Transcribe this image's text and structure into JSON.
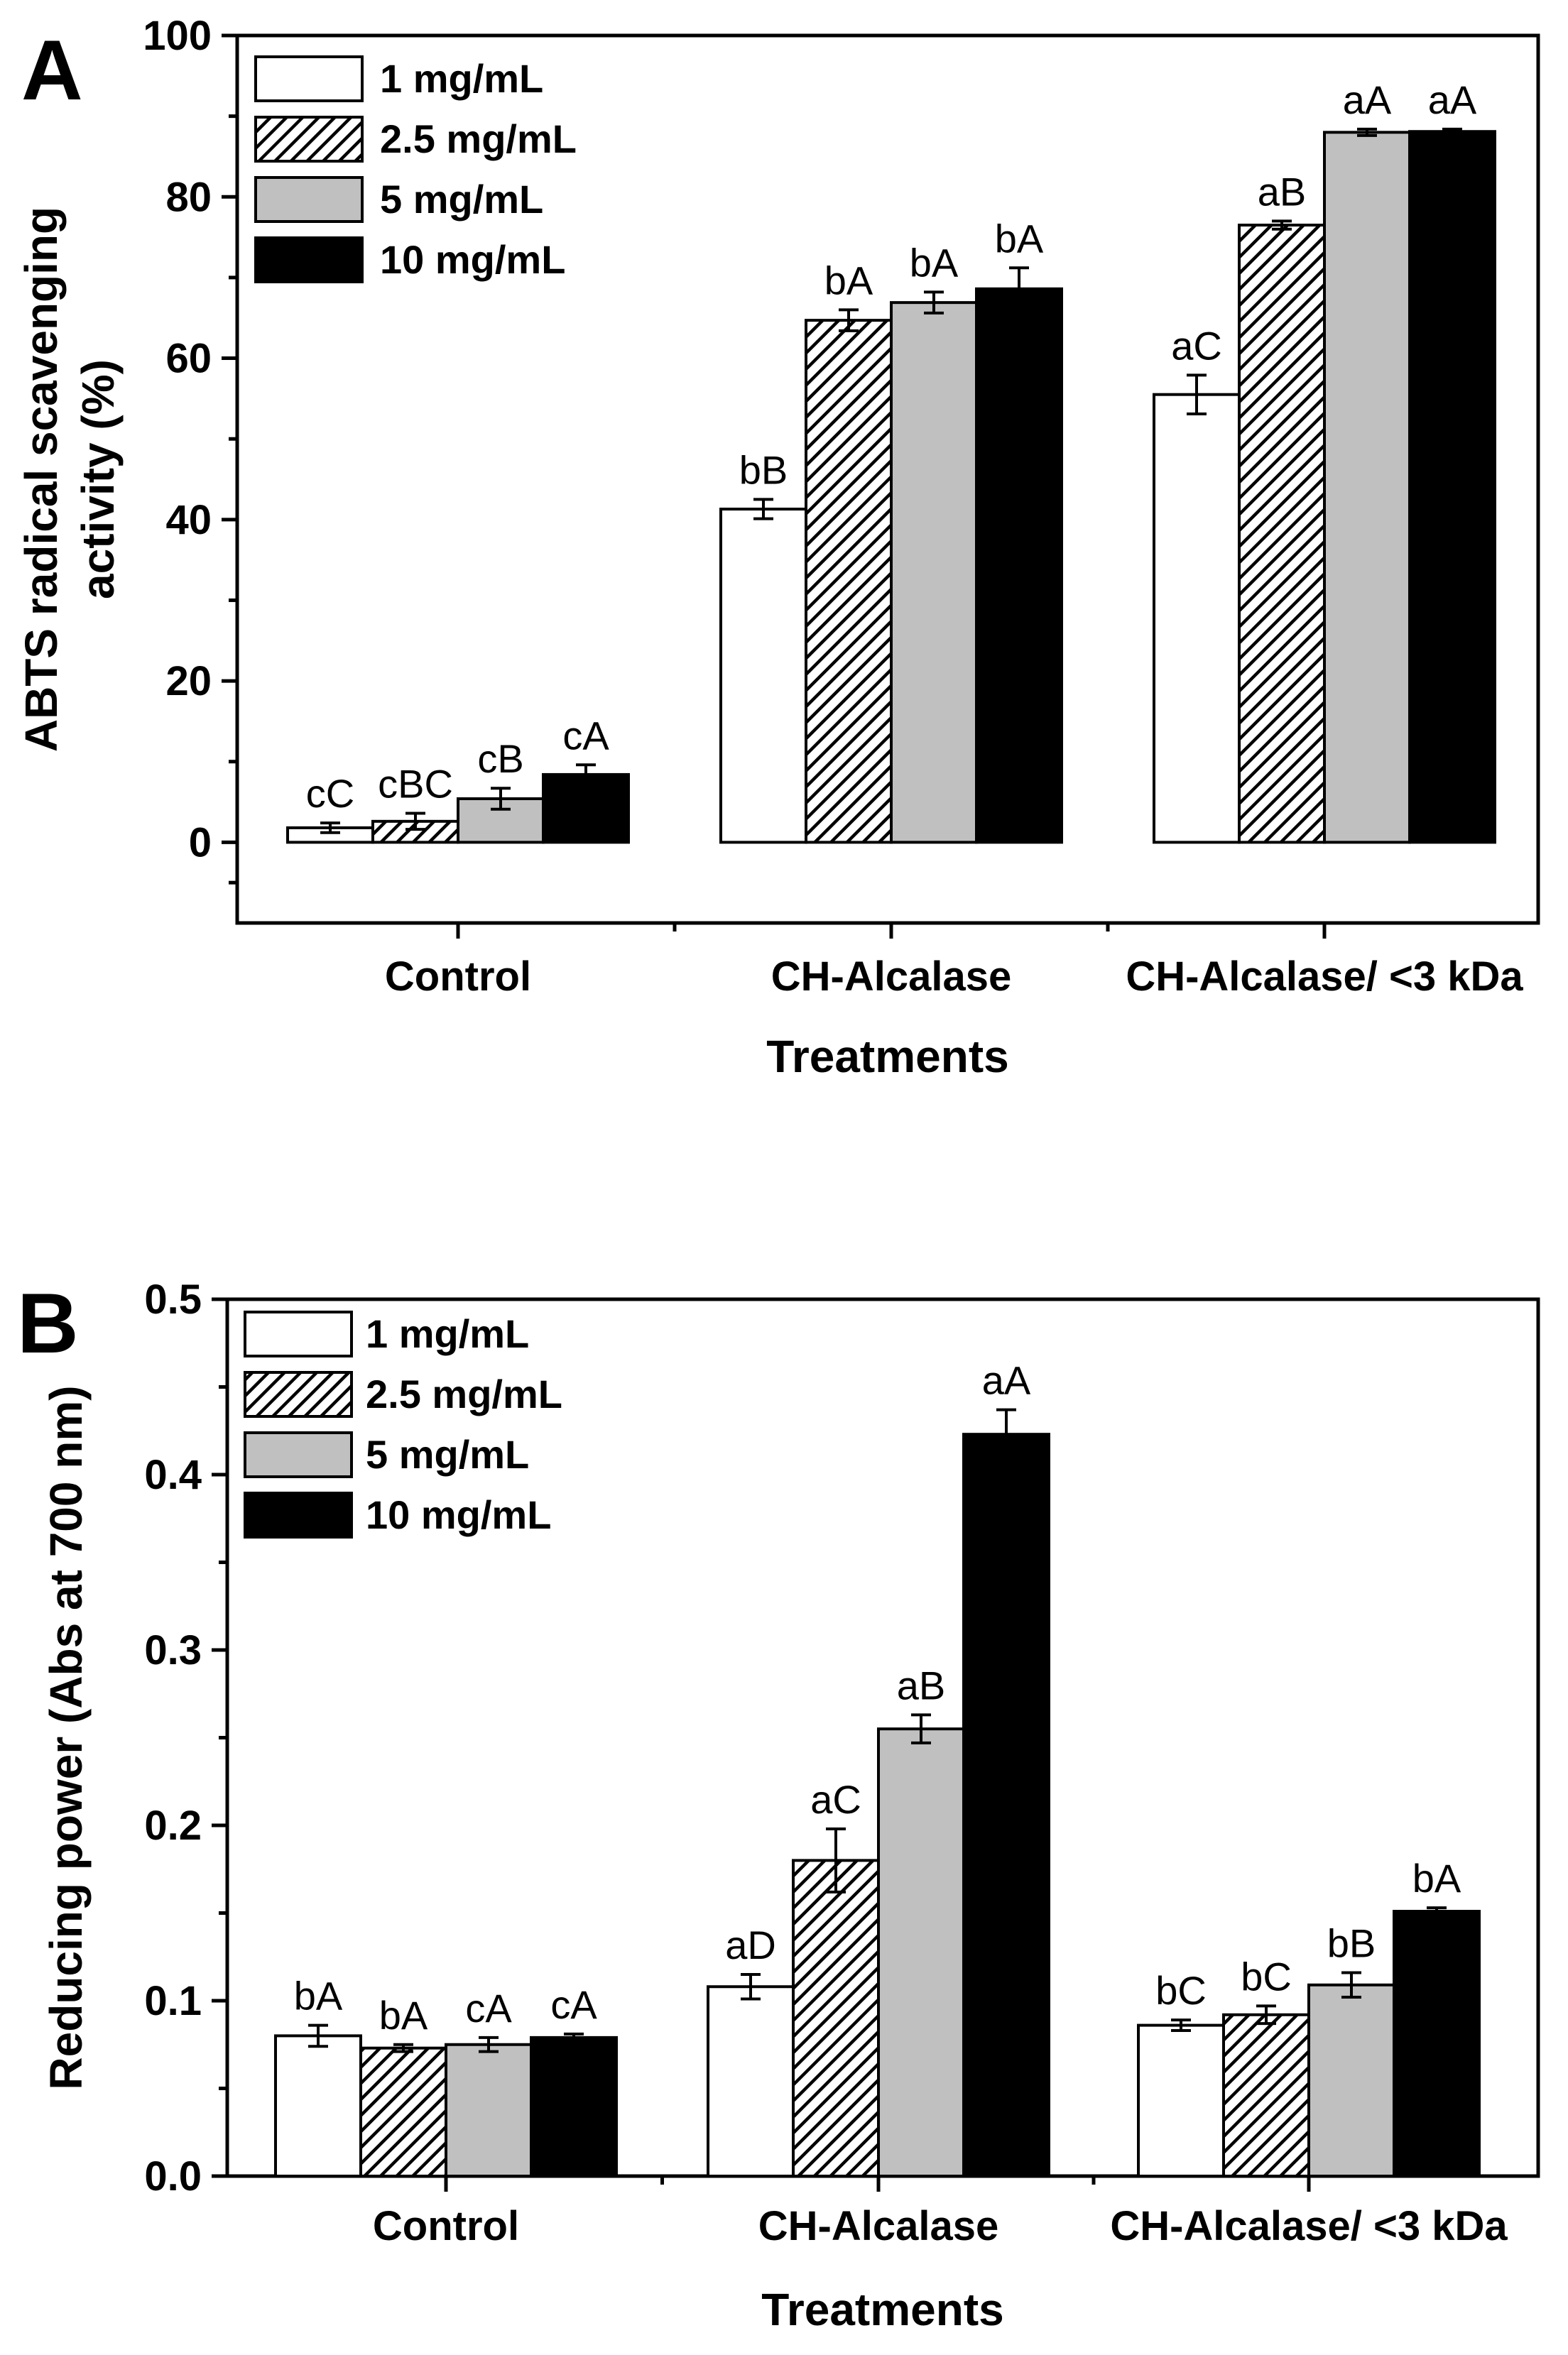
{
  "chart_data": [
    {
      "type": "bar",
      "panel": "A",
      "categories": [
        "Control",
        "CH-Alcalase",
        "CH-Alcalase/ <3 kDa"
      ],
      "xlabel": "Treatments",
      "ylabel_line1": "ABTS radical scavenging",
      "ylabel_line2": "activity (%)",
      "ylim": [
        -10,
        100
      ],
      "yticks": [
        0,
        20,
        40,
        60,
        80,
        100
      ],
      "ytick_labels": [
        "0",
        "20",
        "40",
        "60",
        "80",
        "100"
      ],
      "legend_position": "top-left",
      "series": [
        {
          "name": "1 mg/mL",
          "fill": "white",
          "values": [
            1.8,
            41.3,
            55.5
          ],
          "errors": [
            0.6,
            1.2,
            2.4
          ],
          "labels": [
            "cC",
            "bB",
            "aC"
          ]
        },
        {
          "name": "2.5 mg/mL",
          "fill": "hatch",
          "values": [
            2.6,
            64.7,
            76.5
          ],
          "errors": [
            1.0,
            1.3,
            0.5
          ],
          "labels": [
            "cBC",
            "bA",
            "aB"
          ]
        },
        {
          "name": "5 mg/mL",
          "fill": "#c0c0c0",
          "values": [
            5.4,
            66.9,
            88.0
          ],
          "errors": [
            1.3,
            1.3,
            0.4
          ],
          "labels": [
            "cB",
            "bA",
            "aA"
          ]
        },
        {
          "name": "10 mg/mL",
          "fill": "#000000",
          "values": [
            8.4,
            68.6,
            88.1
          ],
          "errors": [
            1.2,
            2.6,
            0.3
          ],
          "labels": [
            "cA",
            "bA",
            "aA"
          ]
        }
      ]
    },
    {
      "type": "bar",
      "panel": "B",
      "categories": [
        "Control",
        "CH-Alcalase",
        "CH-Alcalase/ <3 kDa"
      ],
      "xlabel": "Treatments",
      "ylabel_line1": "Reducing power (Abs at 700 nm)",
      "ylabel_line2": "",
      "ylim": [
        0,
        0.5
      ],
      "yticks": [
        0.0,
        0.1,
        0.2,
        0.3,
        0.4,
        0.5
      ],
      "ytick_labels": [
        "0.0",
        "0.1",
        "0.2",
        "0.3",
        "0.4",
        "0.5"
      ],
      "legend_position": "top-left",
      "series": [
        {
          "name": "1 mg/mL",
          "fill": "white",
          "values": [
            0.08,
            0.108,
            0.086
          ],
          "errors": [
            0.006,
            0.007,
            0.003
          ],
          "labels": [
            "bA",
            "aD",
            "bC"
          ]
        },
        {
          "name": "2.5 mg/mL",
          "fill": "hatch",
          "values": [
            0.073,
            0.18,
            0.092
          ],
          "errors": [
            0.002,
            0.018,
            0.005
          ],
          "labels": [
            "bA",
            "aC",
            "bC"
          ]
        },
        {
          "name": "5 mg/mL",
          "fill": "#c0c0c0",
          "values": [
            0.075,
            0.255,
            0.109
          ],
          "errors": [
            0.004,
            0.008,
            0.007
          ],
          "labels": [
            "cA",
            "aB",
            "bB"
          ]
        },
        {
          "name": "10 mg/mL",
          "fill": "#000000",
          "values": [
            0.079,
            0.423,
            0.151
          ],
          "errors": [
            0.002,
            0.014,
            0.002
          ],
          "labels": [
            "cA",
            "aA",
            "bA"
          ]
        }
      ]
    }
  ]
}
